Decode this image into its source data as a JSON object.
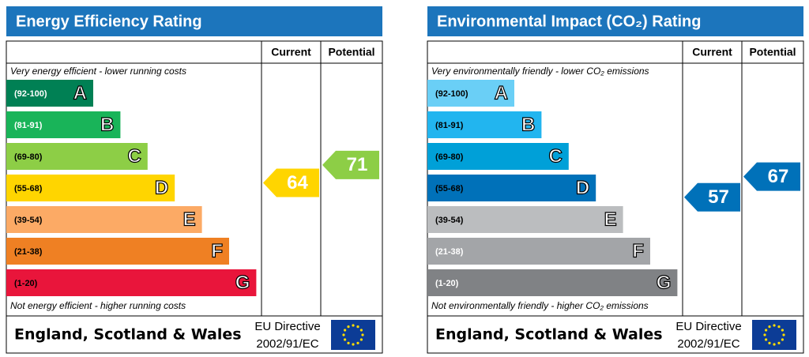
{
  "panels": [
    {
      "title": "Energy Efficiency Rating",
      "columns": [
        "Current",
        "Potential"
      ],
      "top_note": "Very energy efficient - lower running costs",
      "bands": [
        {
          "range": "(92-100)",
          "letter": "A",
          "color": "#008054",
          "text_color": "#ffffff"
        },
        {
          "range": "(81-91)",
          "letter": "B",
          "color": "#19b459",
          "text_color": "#ffffff"
        },
        {
          "range": "(69-80)",
          "letter": "C",
          "color": "#8dce46",
          "text_color": "#000000"
        },
        {
          "range": "(55-68)",
          "letter": "D",
          "color": "#ffd500",
          "text_color": "#000000"
        },
        {
          "range": "(39-54)",
          "letter": "E",
          "color": "#fcaa65",
          "text_color": "#000000"
        },
        {
          "range": "(21-38)",
          "letter": "F",
          "color": "#ef8023",
          "text_color": "#000000"
        },
        {
          "range": "(1-20)",
          "letter": "G",
          "color": "#e9153b",
          "text_color": "#000000"
        }
      ],
      "bottom_note": "Not energy efficient - higher running costs",
      "current": 64,
      "potential": 71,
      "footer": "England, Scotland & Wales",
      "directive": [
        "EU Directive",
        "2002/91/EC"
      ]
    },
    {
      "title": "Environmental Impact (CO₂) Rating",
      "columns": [
        "Current",
        "Potential"
      ],
      "top_note": "Very environmentally friendly - lower CO₂ emissions",
      "bands": [
        {
          "range": "(92-100)",
          "letter": "A",
          "color": "#6acff6",
          "text_color": "#000000"
        },
        {
          "range": "(81-91)",
          "letter": "B",
          "color": "#22b5ef",
          "text_color": "#000000"
        },
        {
          "range": "(69-80)",
          "letter": "C",
          "color": "#00a0d8",
          "text_color": "#000000"
        },
        {
          "range": "(55-68)",
          "letter": "D",
          "color": "#0071b9",
          "text_color": "#000000"
        },
        {
          "range": "(39-54)",
          "letter": "E",
          "color": "#bbbdbf",
          "text_color": "#000000"
        },
        {
          "range": "(21-38)",
          "letter": "F",
          "color": "#a3a5a8",
          "text_color": "#ffffff"
        },
        {
          "range": "(1-20)",
          "letter": "G",
          "color": "#808285",
          "text_color": "#ffffff"
        }
      ],
      "bottom_note": "Not environmentally friendly - higher CO₂ emissions",
      "current": 57,
      "potential": 67,
      "footer": "England, Scotland & Wales",
      "directive": [
        "EU Directive",
        "2002/91/EC"
      ]
    }
  ]
}
